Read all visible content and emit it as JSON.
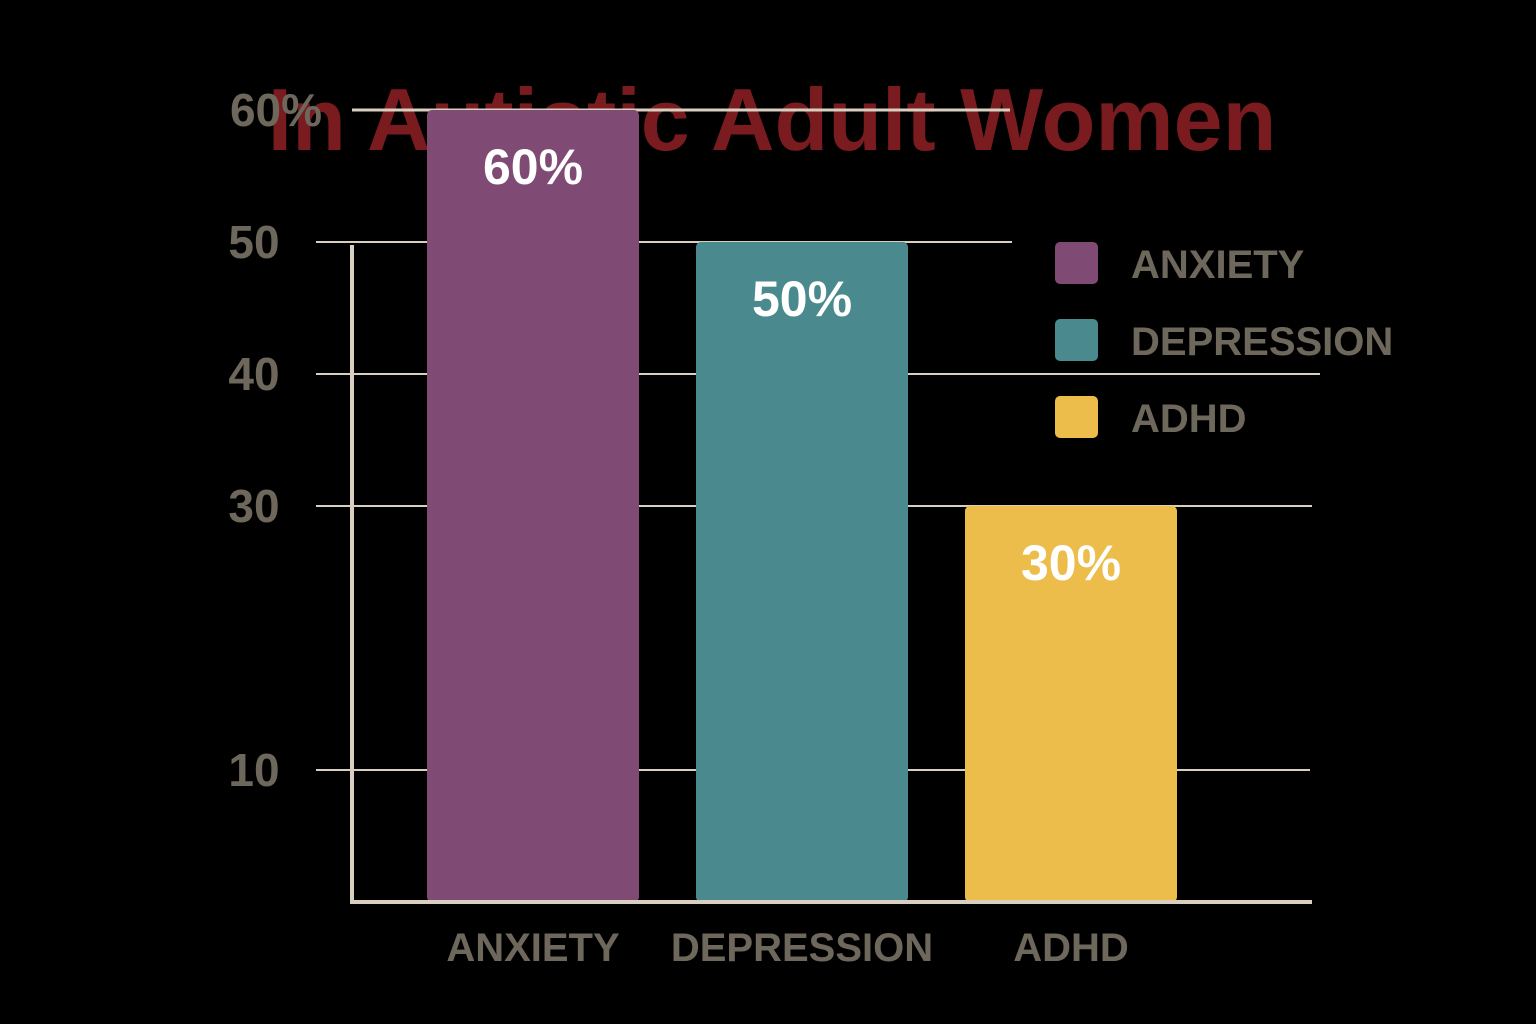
{
  "chart_data": {
    "type": "bar",
    "title": "In Autistic Adult Women",
    "categories": [
      "ANXIETY",
      "DEPRESSION",
      "ADHD"
    ],
    "values": [
      60,
      50,
      30
    ],
    "data_labels": [
      "60%",
      "50%",
      "30%"
    ],
    "bar_colors": [
      "#7f4b75",
      "#4a8a8e",
      "#ecbd4a"
    ],
    "y_ticks": [
      {
        "value": 10,
        "label": "10"
      },
      {
        "value": 30,
        "label": "30"
      },
      {
        "value": 40,
        "label": "40"
      },
      {
        "value": 50,
        "label": "50"
      },
      {
        "value": 60,
        "label": "60%"
      }
    ],
    "legend": {
      "placement": "top-right",
      "items": [
        {
          "label": "ANXIETY",
          "color": "#7f4b75"
        },
        {
          "label": "DEPRESSION",
          "color": "#4a8a8e"
        },
        {
          "label": "ADHD",
          "color": "#ecbd4a"
        }
      ]
    },
    "grid": true,
    "colors": {
      "background": "#000000",
      "title": "#7a1c1f",
      "axis": "#d8cfc0",
      "grid": "#d8cfc0",
      "text": "#6e675c",
      "data_label": "#ffffff"
    }
  }
}
